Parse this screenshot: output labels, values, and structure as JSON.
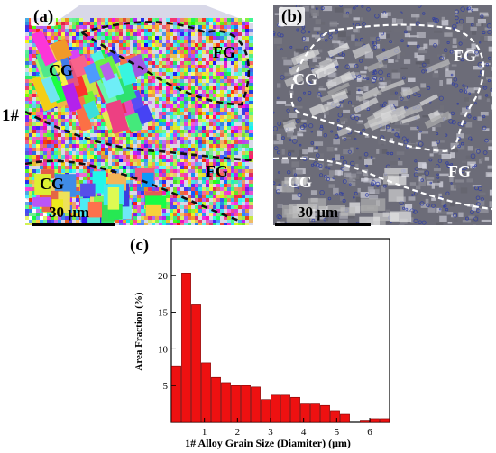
{
  "panels": {
    "a": {
      "label": "(a)",
      "side_label": "1#",
      "regions": [
        "CG",
        "FG",
        "CG",
        "FG"
      ],
      "scale_bar": "30 μm"
    },
    "b": {
      "label": "(b)",
      "regions": [
        "FG",
        "CG",
        "CG",
        "FG"
      ],
      "scale_bar": "30 μm"
    },
    "c": {
      "label": "(c)"
    }
  },
  "colors": {
    "bar_fill": "#ee1111",
    "bar_stroke": "#7a0000",
    "dashed_a": "#111111",
    "dashed_b": "#ffffff",
    "ebsd_bg": "#d8d8e8",
    "sem_bg": "#6c6c78",
    "sem_boundary": "#2a3aa8"
  },
  "chart_data": {
    "type": "bar",
    "xlabel": "1# Alloy Grain Size (Diamiter) (μm)",
    "ylabel": "Area Fraction (%)",
    "xlim": [
      0,
      6.6
    ],
    "ylim": [
      0,
      25
    ],
    "xticks": [
      1,
      2,
      3,
      4,
      5,
      6
    ],
    "yticks": [
      5,
      10,
      15,
      20
    ],
    "bar_width": 0.3,
    "x": [
      0.15,
      0.45,
      0.75,
      1.05,
      1.35,
      1.65,
      1.95,
      2.25,
      2.55,
      2.85,
      3.15,
      3.45,
      3.75,
      4.05,
      4.35,
      4.65,
      4.95,
      5.25,
      5.55,
      5.85,
      6.15,
      6.45
    ],
    "values": [
      7.7,
      20.3,
      16.0,
      8.1,
      6.1,
      5.4,
      5.0,
      5.0,
      4.8,
      3.1,
      3.7,
      3.7,
      3.4,
      2.5,
      2.5,
      2.3,
      1.6,
      1.1,
      0,
      0.3,
      0.5,
      0.5
    ]
  }
}
